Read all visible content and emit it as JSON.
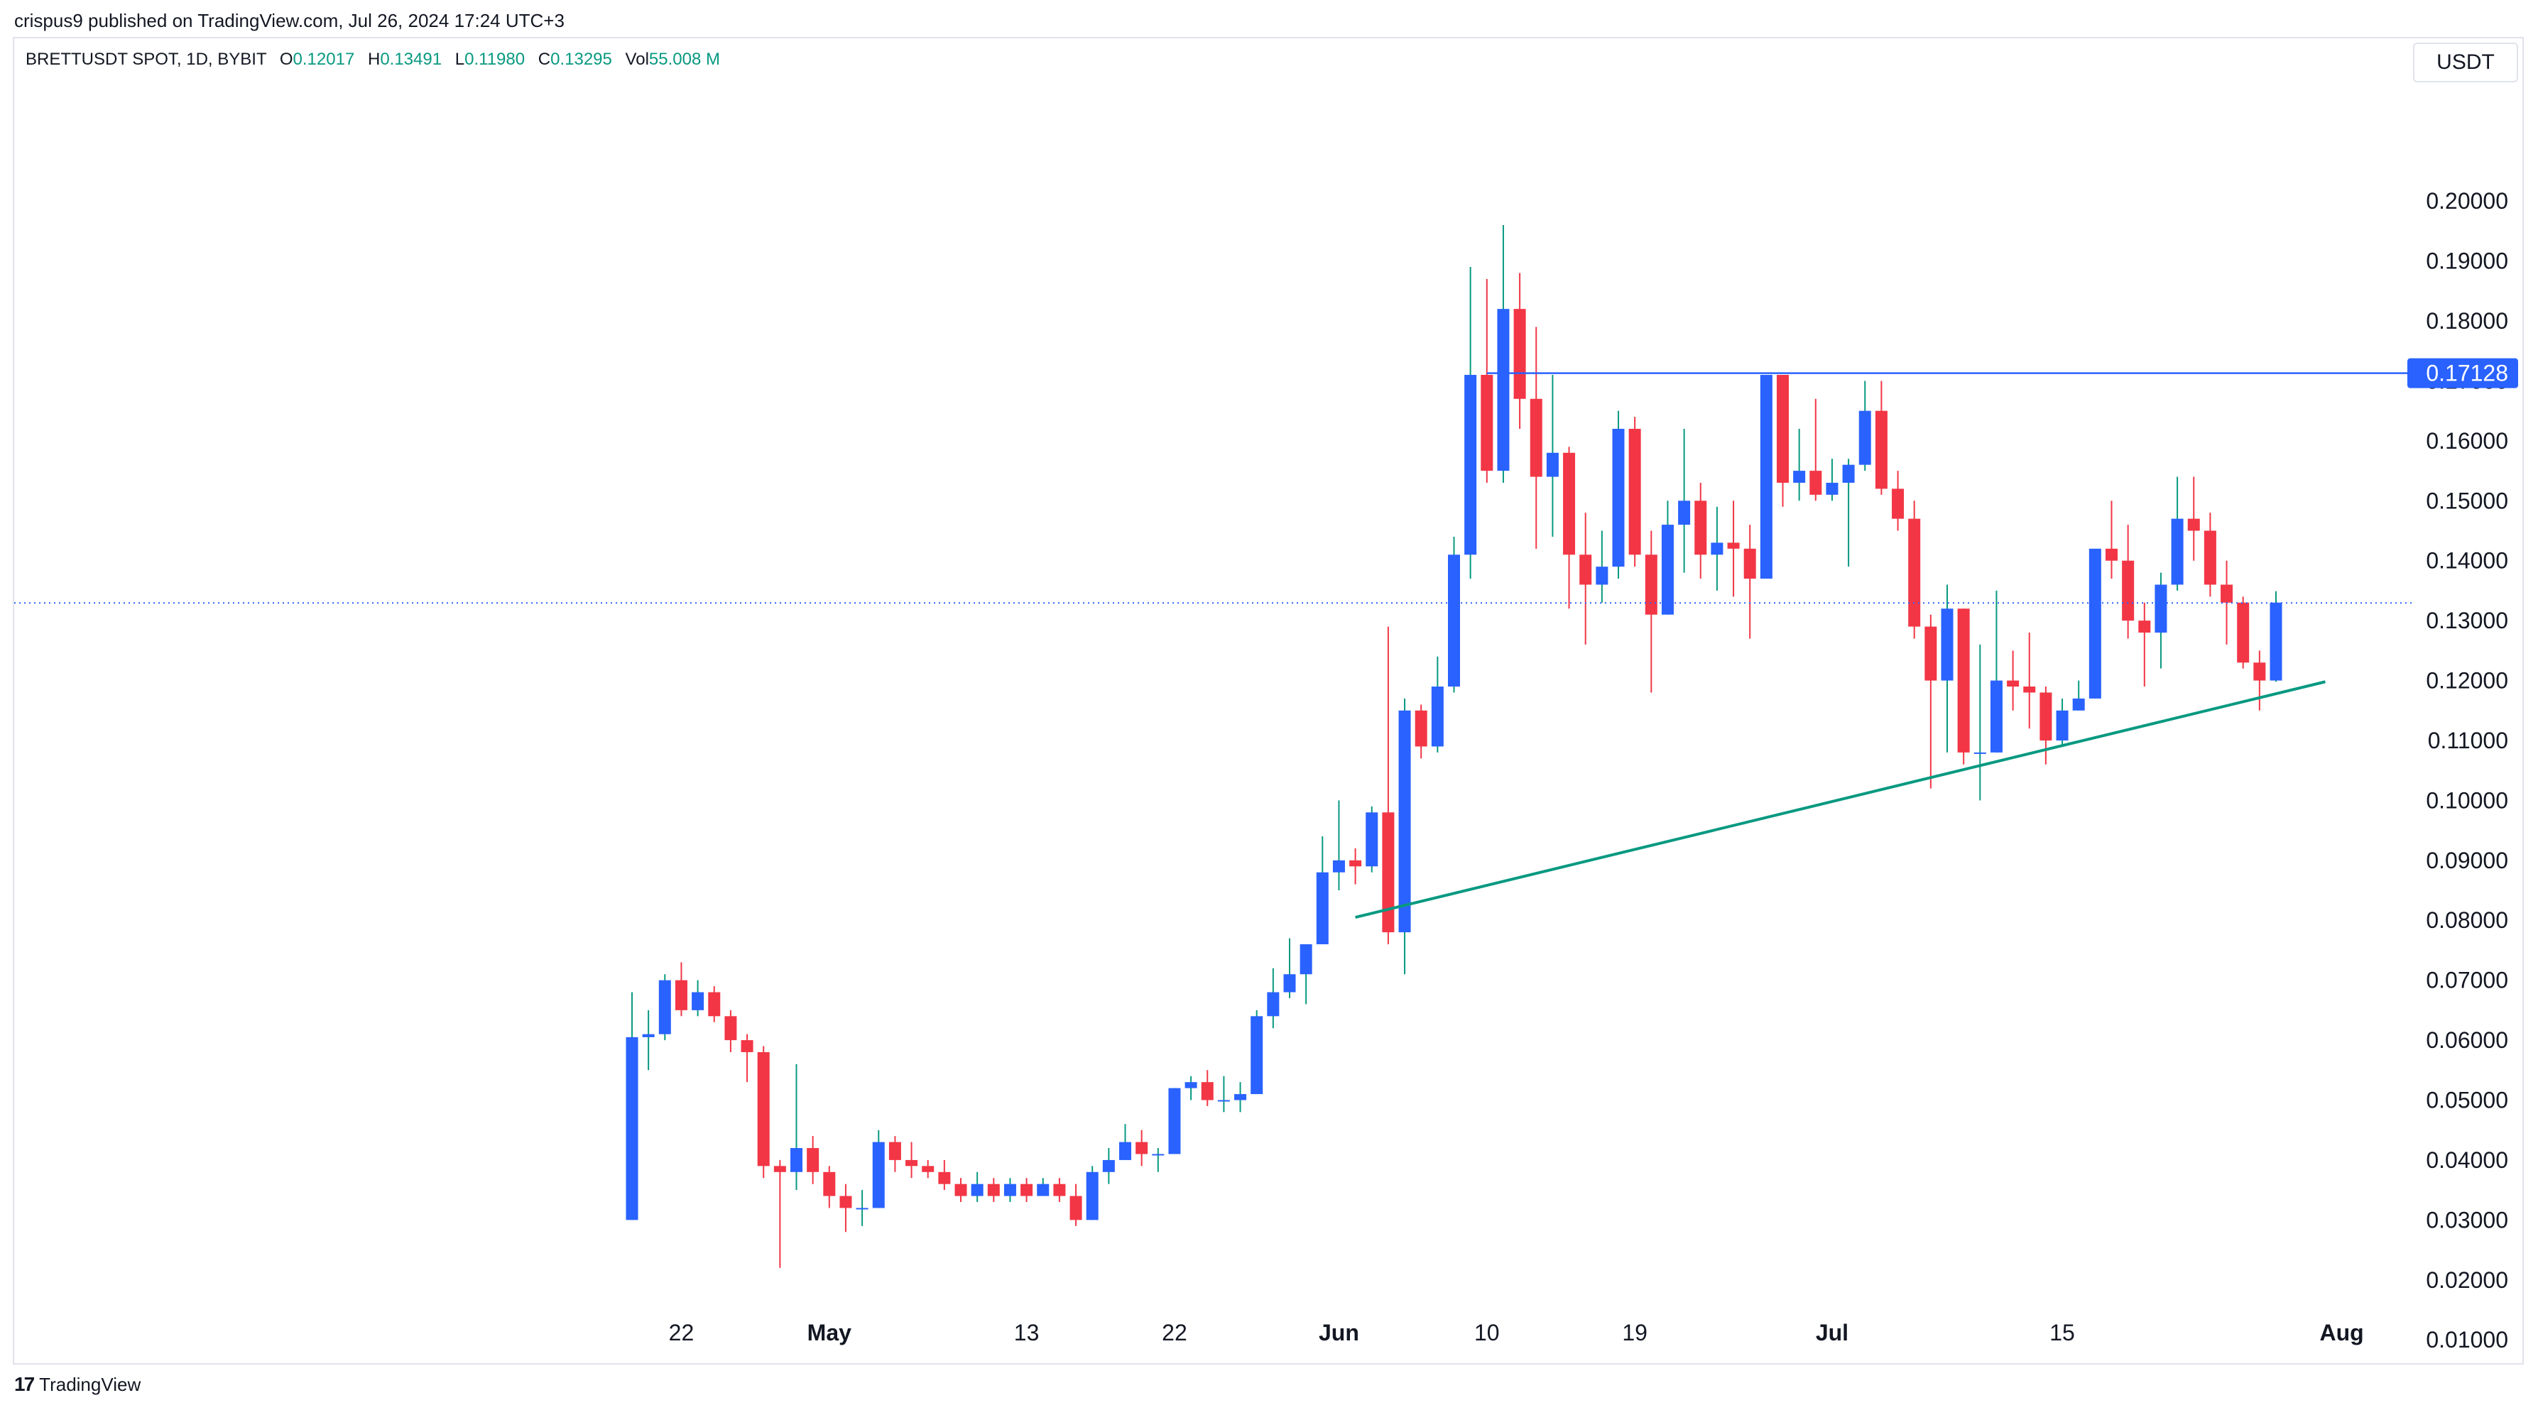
{
  "header": {
    "publisher": "crispus9 published on TradingView.com, Jul 26, 2024 17:24 UTC+3"
  },
  "legend": {
    "symbol": "BRETTUSDT SPOT, 1D, BYBIT",
    "open_label": "O",
    "open": "0.12017",
    "high_label": "H",
    "high": "0.13491",
    "low_label": "L",
    "low": "0.11980",
    "close_label": "C",
    "close": "0.13295",
    "vol_label": "Vol",
    "vol": "55.008 M"
  },
  "currency": "USDT",
  "footer": {
    "brand_mark": "17",
    "brand": "TradingView"
  },
  "colors": {
    "up": "#2962ff",
    "down": "#f23645",
    "wick_up": "#089981",
    "wick_down": "#f23645",
    "resistance": "#2962ff",
    "support": "#089981",
    "price_line": "#2962ff",
    "text_up": "#089981"
  },
  "chart_data": {
    "type": "candlestick",
    "x_start_date": "2024-04-19",
    "y_ticks": [
      "0.01000",
      "0.02000",
      "0.03000",
      "0.04000",
      "0.05000",
      "0.06000",
      "0.07000",
      "0.08000",
      "0.09000",
      "0.10000",
      "0.11000",
      "0.12000",
      "0.13000",
      "0.14000",
      "0.15000",
      "0.16000",
      "0.17000",
      "0.18000",
      "0.19000",
      "0.20000"
    ],
    "ylim": [
      0,
      0.215
    ],
    "x_ticks": [
      {
        "date": "2024-04-22",
        "label": "22"
      },
      {
        "date": "2024-05-01",
        "label": "May"
      },
      {
        "date": "2024-05-13",
        "label": "13"
      },
      {
        "date": "2024-05-22",
        "label": "22"
      },
      {
        "date": "2024-06-01",
        "label": "Jun"
      },
      {
        "date": "2024-06-10",
        "label": "10"
      },
      {
        "date": "2024-06-19",
        "label": "19"
      },
      {
        "date": "2024-07-01",
        "label": "Jul"
      },
      {
        "date": "2024-07-15",
        "label": "15"
      },
      {
        "date": "2024-08-01",
        "label": "Aug"
      }
    ],
    "resistance": {
      "value": 0.17128,
      "label": "0.17128",
      "start_date": "2024-06-10"
    },
    "support": {
      "start_date": "2024-06-02",
      "start_value": 0.0805,
      "end_date": "2024-07-31",
      "end_value": 0.1198
    },
    "current_price": 0.13295,
    "candles": [
      {
        "o": 0.03,
        "h": 0.068,
        "l": 0.03,
        "c": 0.0605
      },
      {
        "o": 0.0605,
        "h": 0.065,
        "l": 0.055,
        "c": 0.061
      },
      {
        "o": 0.061,
        "h": 0.071,
        "l": 0.06,
        "c": 0.07
      },
      {
        "o": 0.07,
        "h": 0.073,
        "l": 0.064,
        "c": 0.065
      },
      {
        "o": 0.065,
        "h": 0.07,
        "l": 0.064,
        "c": 0.068
      },
      {
        "o": 0.068,
        "h": 0.069,
        "l": 0.063,
        "c": 0.064
      },
      {
        "o": 0.064,
        "h": 0.065,
        "l": 0.058,
        "c": 0.06
      },
      {
        "o": 0.06,
        "h": 0.061,
        "l": 0.053,
        "c": 0.058
      },
      {
        "o": 0.058,
        "h": 0.059,
        "l": 0.037,
        "c": 0.039
      },
      {
        "o": 0.039,
        "h": 0.04,
        "l": 0.022,
        "c": 0.038
      },
      {
        "o": 0.038,
        "h": 0.056,
        "l": 0.035,
        "c": 0.042
      },
      {
        "o": 0.042,
        "h": 0.044,
        "l": 0.036,
        "c": 0.038
      },
      {
        "o": 0.038,
        "h": 0.039,
        "l": 0.032,
        "c": 0.034
      },
      {
        "o": 0.034,
        "h": 0.036,
        "l": 0.028,
        "c": 0.032
      },
      {
        "o": 0.032,
        "h": 0.035,
        "l": 0.029,
        "c": 0.032
      },
      {
        "o": 0.032,
        "h": 0.045,
        "l": 0.032,
        "c": 0.043
      },
      {
        "o": 0.043,
        "h": 0.044,
        "l": 0.038,
        "c": 0.04
      },
      {
        "o": 0.04,
        "h": 0.043,
        "l": 0.037,
        "c": 0.039
      },
      {
        "o": 0.039,
        "h": 0.04,
        "l": 0.037,
        "c": 0.038
      },
      {
        "o": 0.038,
        "h": 0.04,
        "l": 0.035,
        "c": 0.036
      },
      {
        "o": 0.036,
        "h": 0.037,
        "l": 0.033,
        "c": 0.034
      },
      {
        "o": 0.034,
        "h": 0.038,
        "l": 0.033,
        "c": 0.036
      },
      {
        "o": 0.036,
        "h": 0.037,
        "l": 0.033,
        "c": 0.034
      },
      {
        "o": 0.034,
        "h": 0.037,
        "l": 0.033,
        "c": 0.036
      },
      {
        "o": 0.036,
        "h": 0.037,
        "l": 0.033,
        "c": 0.034
      },
      {
        "o": 0.034,
        "h": 0.037,
        "l": 0.034,
        "c": 0.036
      },
      {
        "o": 0.036,
        "h": 0.037,
        "l": 0.033,
        "c": 0.034
      },
      {
        "o": 0.034,
        "h": 0.036,
        "l": 0.029,
        "c": 0.03
      },
      {
        "o": 0.03,
        "h": 0.039,
        "l": 0.03,
        "c": 0.038
      },
      {
        "o": 0.038,
        "h": 0.042,
        "l": 0.036,
        "c": 0.04
      },
      {
        "o": 0.04,
        "h": 0.046,
        "l": 0.04,
        "c": 0.043
      },
      {
        "o": 0.043,
        "h": 0.045,
        "l": 0.039,
        "c": 0.041
      },
      {
        "o": 0.041,
        "h": 0.042,
        "l": 0.038,
        "c": 0.041
      },
      {
        "o": 0.041,
        "h": 0.052,
        "l": 0.041,
        "c": 0.052
      },
      {
        "o": 0.052,
        "h": 0.054,
        "l": 0.05,
        "c": 0.053
      },
      {
        "o": 0.053,
        "h": 0.055,
        "l": 0.049,
        "c": 0.05
      },
      {
        "o": 0.05,
        "h": 0.054,
        "l": 0.048,
        "c": 0.05
      },
      {
        "o": 0.05,
        "h": 0.053,
        "l": 0.048,
        "c": 0.051
      },
      {
        "o": 0.051,
        "h": 0.065,
        "l": 0.051,
        "c": 0.064
      },
      {
        "o": 0.064,
        "h": 0.072,
        "l": 0.062,
        "c": 0.068
      },
      {
        "o": 0.068,
        "h": 0.077,
        "l": 0.067,
        "c": 0.071
      },
      {
        "o": 0.071,
        "h": 0.076,
        "l": 0.066,
        "c": 0.076
      },
      {
        "o": 0.076,
        "h": 0.094,
        "l": 0.076,
        "c": 0.088
      },
      {
        "o": 0.088,
        "h": 0.1,
        "l": 0.085,
        "c": 0.09
      },
      {
        "o": 0.09,
        "h": 0.092,
        "l": 0.086,
        "c": 0.089
      },
      {
        "o": 0.089,
        "h": 0.099,
        "l": 0.088,
        "c": 0.098
      },
      {
        "o": 0.098,
        "h": 0.129,
        "l": 0.076,
        "c": 0.078
      },
      {
        "o": 0.078,
        "h": 0.117,
        "l": 0.071,
        "c": 0.115
      },
      {
        "o": 0.115,
        "h": 0.116,
        "l": 0.107,
        "c": 0.109
      },
      {
        "o": 0.109,
        "h": 0.124,
        "l": 0.108,
        "c": 0.119
      },
      {
        "o": 0.119,
        "h": 0.144,
        "l": 0.118,
        "c": 0.141
      },
      {
        "o": 0.141,
        "h": 0.189,
        "l": 0.137,
        "c": 0.171
      },
      {
        "o": 0.171,
        "h": 0.187,
        "l": 0.153,
        "c": 0.155
      },
      {
        "o": 0.155,
        "h": 0.196,
        "l": 0.153,
        "c": 0.182
      },
      {
        "o": 0.182,
        "h": 0.188,
        "l": 0.162,
        "c": 0.167
      },
      {
        "o": 0.167,
        "h": 0.179,
        "l": 0.142,
        "c": 0.154
      },
      {
        "o": 0.154,
        "h": 0.171,
        "l": 0.144,
        "c": 0.158
      },
      {
        "o": 0.158,
        "h": 0.159,
        "l": 0.132,
        "c": 0.141
      },
      {
        "o": 0.141,
        "h": 0.148,
        "l": 0.126,
        "c": 0.136
      },
      {
        "o": 0.136,
        "h": 0.145,
        "l": 0.133,
        "c": 0.139
      },
      {
        "o": 0.139,
        "h": 0.165,
        "l": 0.137,
        "c": 0.162
      },
      {
        "o": 0.162,
        "h": 0.164,
        "l": 0.139,
        "c": 0.141
      },
      {
        "o": 0.141,
        "h": 0.145,
        "l": 0.118,
        "c": 0.131
      },
      {
        "o": 0.131,
        "h": 0.15,
        "l": 0.131,
        "c": 0.146
      },
      {
        "o": 0.146,
        "h": 0.162,
        "l": 0.138,
        "c": 0.15
      },
      {
        "o": 0.15,
        "h": 0.153,
        "l": 0.137,
        "c": 0.141
      },
      {
        "o": 0.141,
        "h": 0.149,
        "l": 0.135,
        "c": 0.143
      },
      {
        "o": 0.143,
        "h": 0.15,
        "l": 0.134,
        "c": 0.142
      },
      {
        "o": 0.142,
        "h": 0.146,
        "l": 0.127,
        "c": 0.137
      },
      {
        "o": 0.137,
        "h": 0.171,
        "l": 0.137,
        "c": 0.171
      },
      {
        "o": 0.171,
        "h": 0.171,
        "l": 0.149,
        "c": 0.153
      },
      {
        "o": 0.153,
        "h": 0.162,
        "l": 0.15,
        "c": 0.155
      },
      {
        "o": 0.155,
        "h": 0.167,
        "l": 0.15,
        "c": 0.151
      },
      {
        "o": 0.151,
        "h": 0.157,
        "l": 0.15,
        "c": 0.153
      },
      {
        "o": 0.153,
        "h": 0.157,
        "l": 0.139,
        "c": 0.156
      },
      {
        "o": 0.156,
        "h": 0.17,
        "l": 0.155,
        "c": 0.165
      },
      {
        "o": 0.165,
        "h": 0.17,
        "l": 0.151,
        "c": 0.152
      },
      {
        "o": 0.152,
        "h": 0.155,
        "l": 0.145,
        "c": 0.147
      },
      {
        "o": 0.147,
        "h": 0.15,
        "l": 0.127,
        "c": 0.129
      },
      {
        "o": 0.129,
        "h": 0.131,
        "l": 0.102,
        "c": 0.12
      },
      {
        "o": 0.12,
        "h": 0.136,
        "l": 0.108,
        "c": 0.132
      },
      {
        "o": 0.132,
        "h": 0.132,
        "l": 0.106,
        "c": 0.108
      },
      {
        "o": 0.108,
        "h": 0.126,
        "l": 0.1,
        "c": 0.108
      },
      {
        "o": 0.108,
        "h": 0.135,
        "l": 0.108,
        "c": 0.12
      },
      {
        "o": 0.12,
        "h": 0.125,
        "l": 0.115,
        "c": 0.119
      },
      {
        "o": 0.119,
        "h": 0.128,
        "l": 0.112,
        "c": 0.118
      },
      {
        "o": 0.118,
        "h": 0.119,
        "l": 0.106,
        "c": 0.11
      },
      {
        "o": 0.11,
        "h": 0.117,
        "l": 0.109,
        "c": 0.115
      },
      {
        "o": 0.115,
        "h": 0.12,
        "l": 0.115,
        "c": 0.117
      },
      {
        "o": 0.117,
        "h": 0.142,
        "l": 0.117,
        "c": 0.142
      },
      {
        "o": 0.142,
        "h": 0.15,
        "l": 0.137,
        "c": 0.14
      },
      {
        "o": 0.14,
        "h": 0.146,
        "l": 0.127,
        "c": 0.13
      },
      {
        "o": 0.13,
        "h": 0.133,
        "l": 0.119,
        "c": 0.128
      },
      {
        "o": 0.128,
        "h": 0.138,
        "l": 0.122,
        "c": 0.136
      },
      {
        "o": 0.136,
        "h": 0.154,
        "l": 0.135,
        "c": 0.147
      },
      {
        "o": 0.147,
        "h": 0.154,
        "l": 0.14,
        "c": 0.145
      },
      {
        "o": 0.145,
        "h": 0.148,
        "l": 0.134,
        "c": 0.136
      },
      {
        "o": 0.136,
        "h": 0.14,
        "l": 0.126,
        "c": 0.133
      },
      {
        "o": 0.133,
        "h": 0.134,
        "l": 0.122,
        "c": 0.123
      },
      {
        "o": 0.123,
        "h": 0.125,
        "l": 0.115,
        "c": 0.12
      },
      {
        "o": 0.12,
        "h": 0.1349,
        "l": 0.1198,
        "c": 0.133
      }
    ]
  }
}
